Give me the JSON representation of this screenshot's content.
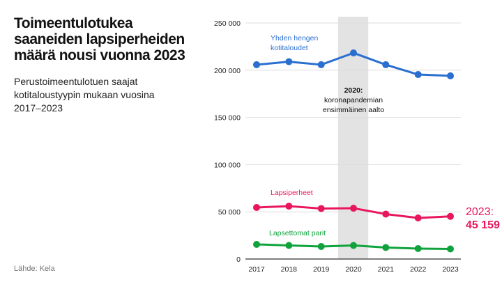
{
  "title": "Toimeentulotukea saaneiden lapsiperheiden määrä nousi vuonna 2023",
  "subtitle": "Perustoimeentulotuen saajat kotitaloustyypin mukaan vuosina 2017–2023",
  "source": "Lähde: Kela",
  "chart_data": {
    "type": "line",
    "categories": [
      "2017",
      "2018",
      "2019",
      "2020",
      "2021",
      "2022",
      "2023"
    ],
    "ylim": [
      0,
      250000
    ],
    "yticks": [
      0,
      50000,
      100000,
      150000,
      200000,
      250000
    ],
    "ytick_labels": [
      "0",
      "50 000",
      "100 000",
      "150 000",
      "200 000",
      "250 000"
    ],
    "grid": true,
    "series": [
      {
        "name": "Yhden hengen kotitaloudet",
        "name_lines": [
          "Yhden hengen",
          "kotitaloudet"
        ],
        "color": "#2a6fd0",
        "values": [
          205800,
          209000,
          205800,
          218300,
          205800,
          195400,
          194000
        ]
      },
      {
        "name": "Lapsiperheet",
        "name_lines": [
          "Lapsiperheet"
        ],
        "color": "#e8175d",
        "values": [
          54600,
          56000,
          53500,
          53800,
          47600,
          43500,
          45159
        ]
      },
      {
        "name": "Lapsettomat parit",
        "name_lines": [
          "Lapsettomat parit"
        ],
        "color": "#10a33d",
        "values": [
          15500,
          14400,
          13300,
          14400,
          12200,
          11100,
          10700
        ]
      }
    ],
    "highlight": {
      "category": "2020",
      "color": "#e3e3e3",
      "label_lines": [
        "2020:",
        "koronapandemian",
        "ensimmäinen aalto"
      ]
    },
    "end_label": {
      "year": "2023:",
      "value": "45 159",
      "color": "#e8175d"
    }
  }
}
